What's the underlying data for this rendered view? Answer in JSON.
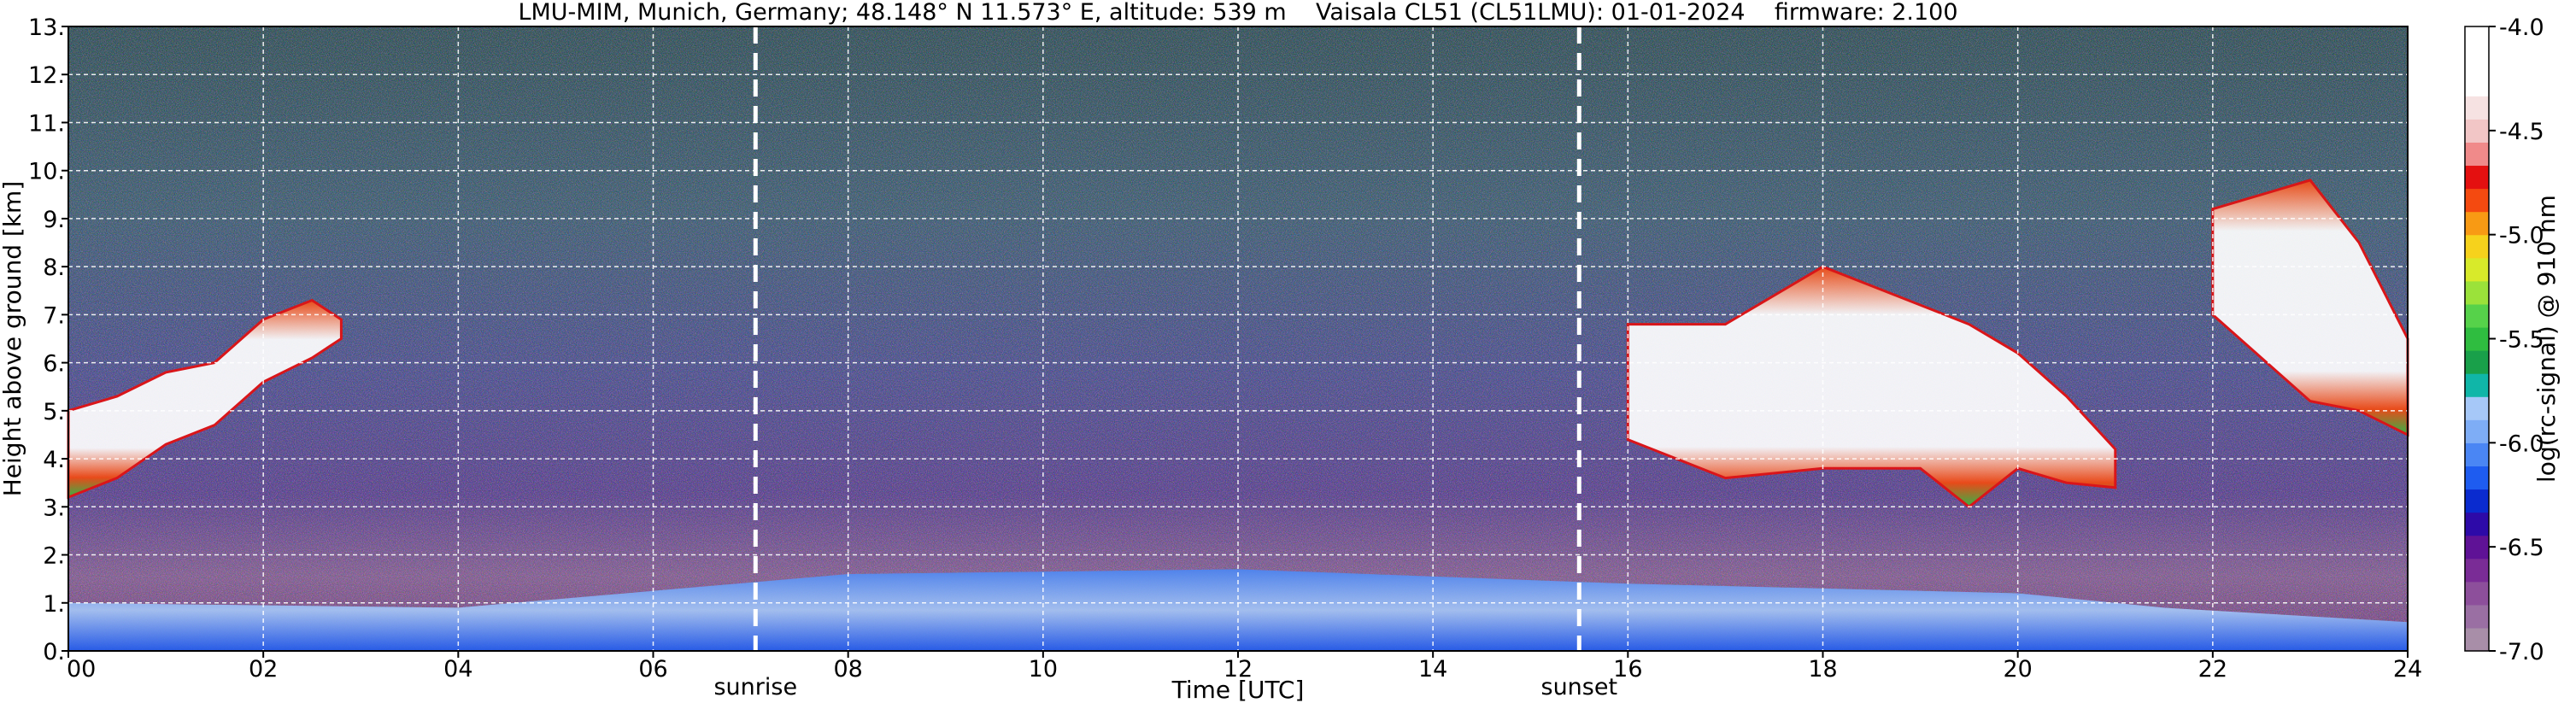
{
  "chart_data": {
    "type": "heatmap",
    "title": "LMU-MIM, Munich, Germany; 48.148° N 11.573° E, altitude: 539 m    Vaisala CL51 (CL51LMU): 01-01-2024    firmware: 2.100",
    "xlabel": "Time [UTC]",
    "ylabel": "Height above ground [km]",
    "xlim": [
      0,
      24
    ],
    "ylim": [
      0,
      13
    ],
    "x_ticks": [
      0,
      2,
      4,
      6,
      8,
      10,
      12,
      14,
      16,
      18,
      20,
      22,
      24
    ],
    "x_tick_labels": [
      "00",
      "02",
      "04",
      "06",
      "08",
      "10",
      "12",
      "14",
      "16",
      "18",
      "20",
      "22",
      "24"
    ],
    "y_ticks": [
      0,
      1,
      2,
      3,
      4,
      5,
      6,
      7,
      8,
      9,
      10,
      11,
      12,
      13
    ],
    "y_tick_labels": [
      "0.",
      "1.",
      "2.",
      "3.",
      "4.",
      "5.",
      "6.",
      "7.",
      "8.",
      "9.",
      "10.",
      "11.",
      "12.",
      "13."
    ],
    "grid": true,
    "markers": [
      {
        "label": "sunrise",
        "x": 7.05
      },
      {
        "label": "sunset",
        "x": 15.5
      }
    ],
    "colorbar": {
      "label": "log(rc-signal) @ 910 nm",
      "range": [
        -7.0,
        -4.0
      ],
      "ticks": [
        -7.0,
        -6.5,
        -6.0,
        -5.5,
        -5.0,
        -4.5,
        -4.0
      ],
      "tick_labels": [
        "-7.0",
        "-6.5",
        "-6.0",
        "-5.5",
        "-5.0",
        "-4.5",
        "-4.0"
      ],
      "colors": [
        "#a88ea8",
        "#9a6fa3",
        "#8d4f9b",
        "#7a2c96",
        "#5f1296",
        "#2d0aa8",
        "#0a2bcf",
        "#1e5cf0",
        "#4a86f4",
        "#7eadf6",
        "#a6c8f8",
        "#10b6a8",
        "#19a04a",
        "#2fbd40",
        "#56d24a",
        "#9be23a",
        "#d8ea2a",
        "#f6d21c",
        "#f89a14",
        "#f44a10",
        "#e41010",
        "#f08a8a",
        "#f2c6c6",
        "#f6e2e2",
        "#ffffff",
        "#ffffff",
        "#ffffff"
      ]
    },
    "series": [
      {
        "type": "cloud-layer",
        "x": [
          0.0,
          0.5,
          1.0,
          1.5,
          2.0,
          2.5,
          2.8
        ],
        "y_base": [
          3.2,
          3.6,
          4.3,
          4.7,
          5.6,
          6.1,
          6.5
        ],
        "y_top": [
          5.0,
          5.3,
          5.8,
          6.0,
          6.9,
          7.3,
          6.9
        ]
      },
      {
        "type": "cloud-layer",
        "x": [
          16.0,
          17.0,
          18.0,
          19.0,
          19.5,
          20.0,
          20.5,
          21.0
        ],
        "y_base": [
          4.4,
          3.6,
          3.8,
          3.8,
          3.0,
          3.8,
          3.5,
          3.4
        ],
        "y_top": [
          6.8,
          6.8,
          8.0,
          7.2,
          6.8,
          6.2,
          5.3,
          4.2
        ]
      },
      {
        "type": "cloud-layer",
        "x": [
          22.0,
          23.0,
          23.5,
          24.0
        ],
        "y_base": [
          7.0,
          5.2,
          5.0,
          4.5
        ],
        "y_top": [
          9.2,
          9.8,
          8.5,
          6.5
        ]
      },
      {
        "type": "boundary-layer",
        "x": [
          0,
          4,
          8,
          12,
          16,
          20,
          21.5,
          24
        ],
        "y_top": [
          1.0,
          0.9,
          1.6,
          1.7,
          1.4,
          1.2,
          0.9,
          0.6
        ]
      }
    ]
  }
}
